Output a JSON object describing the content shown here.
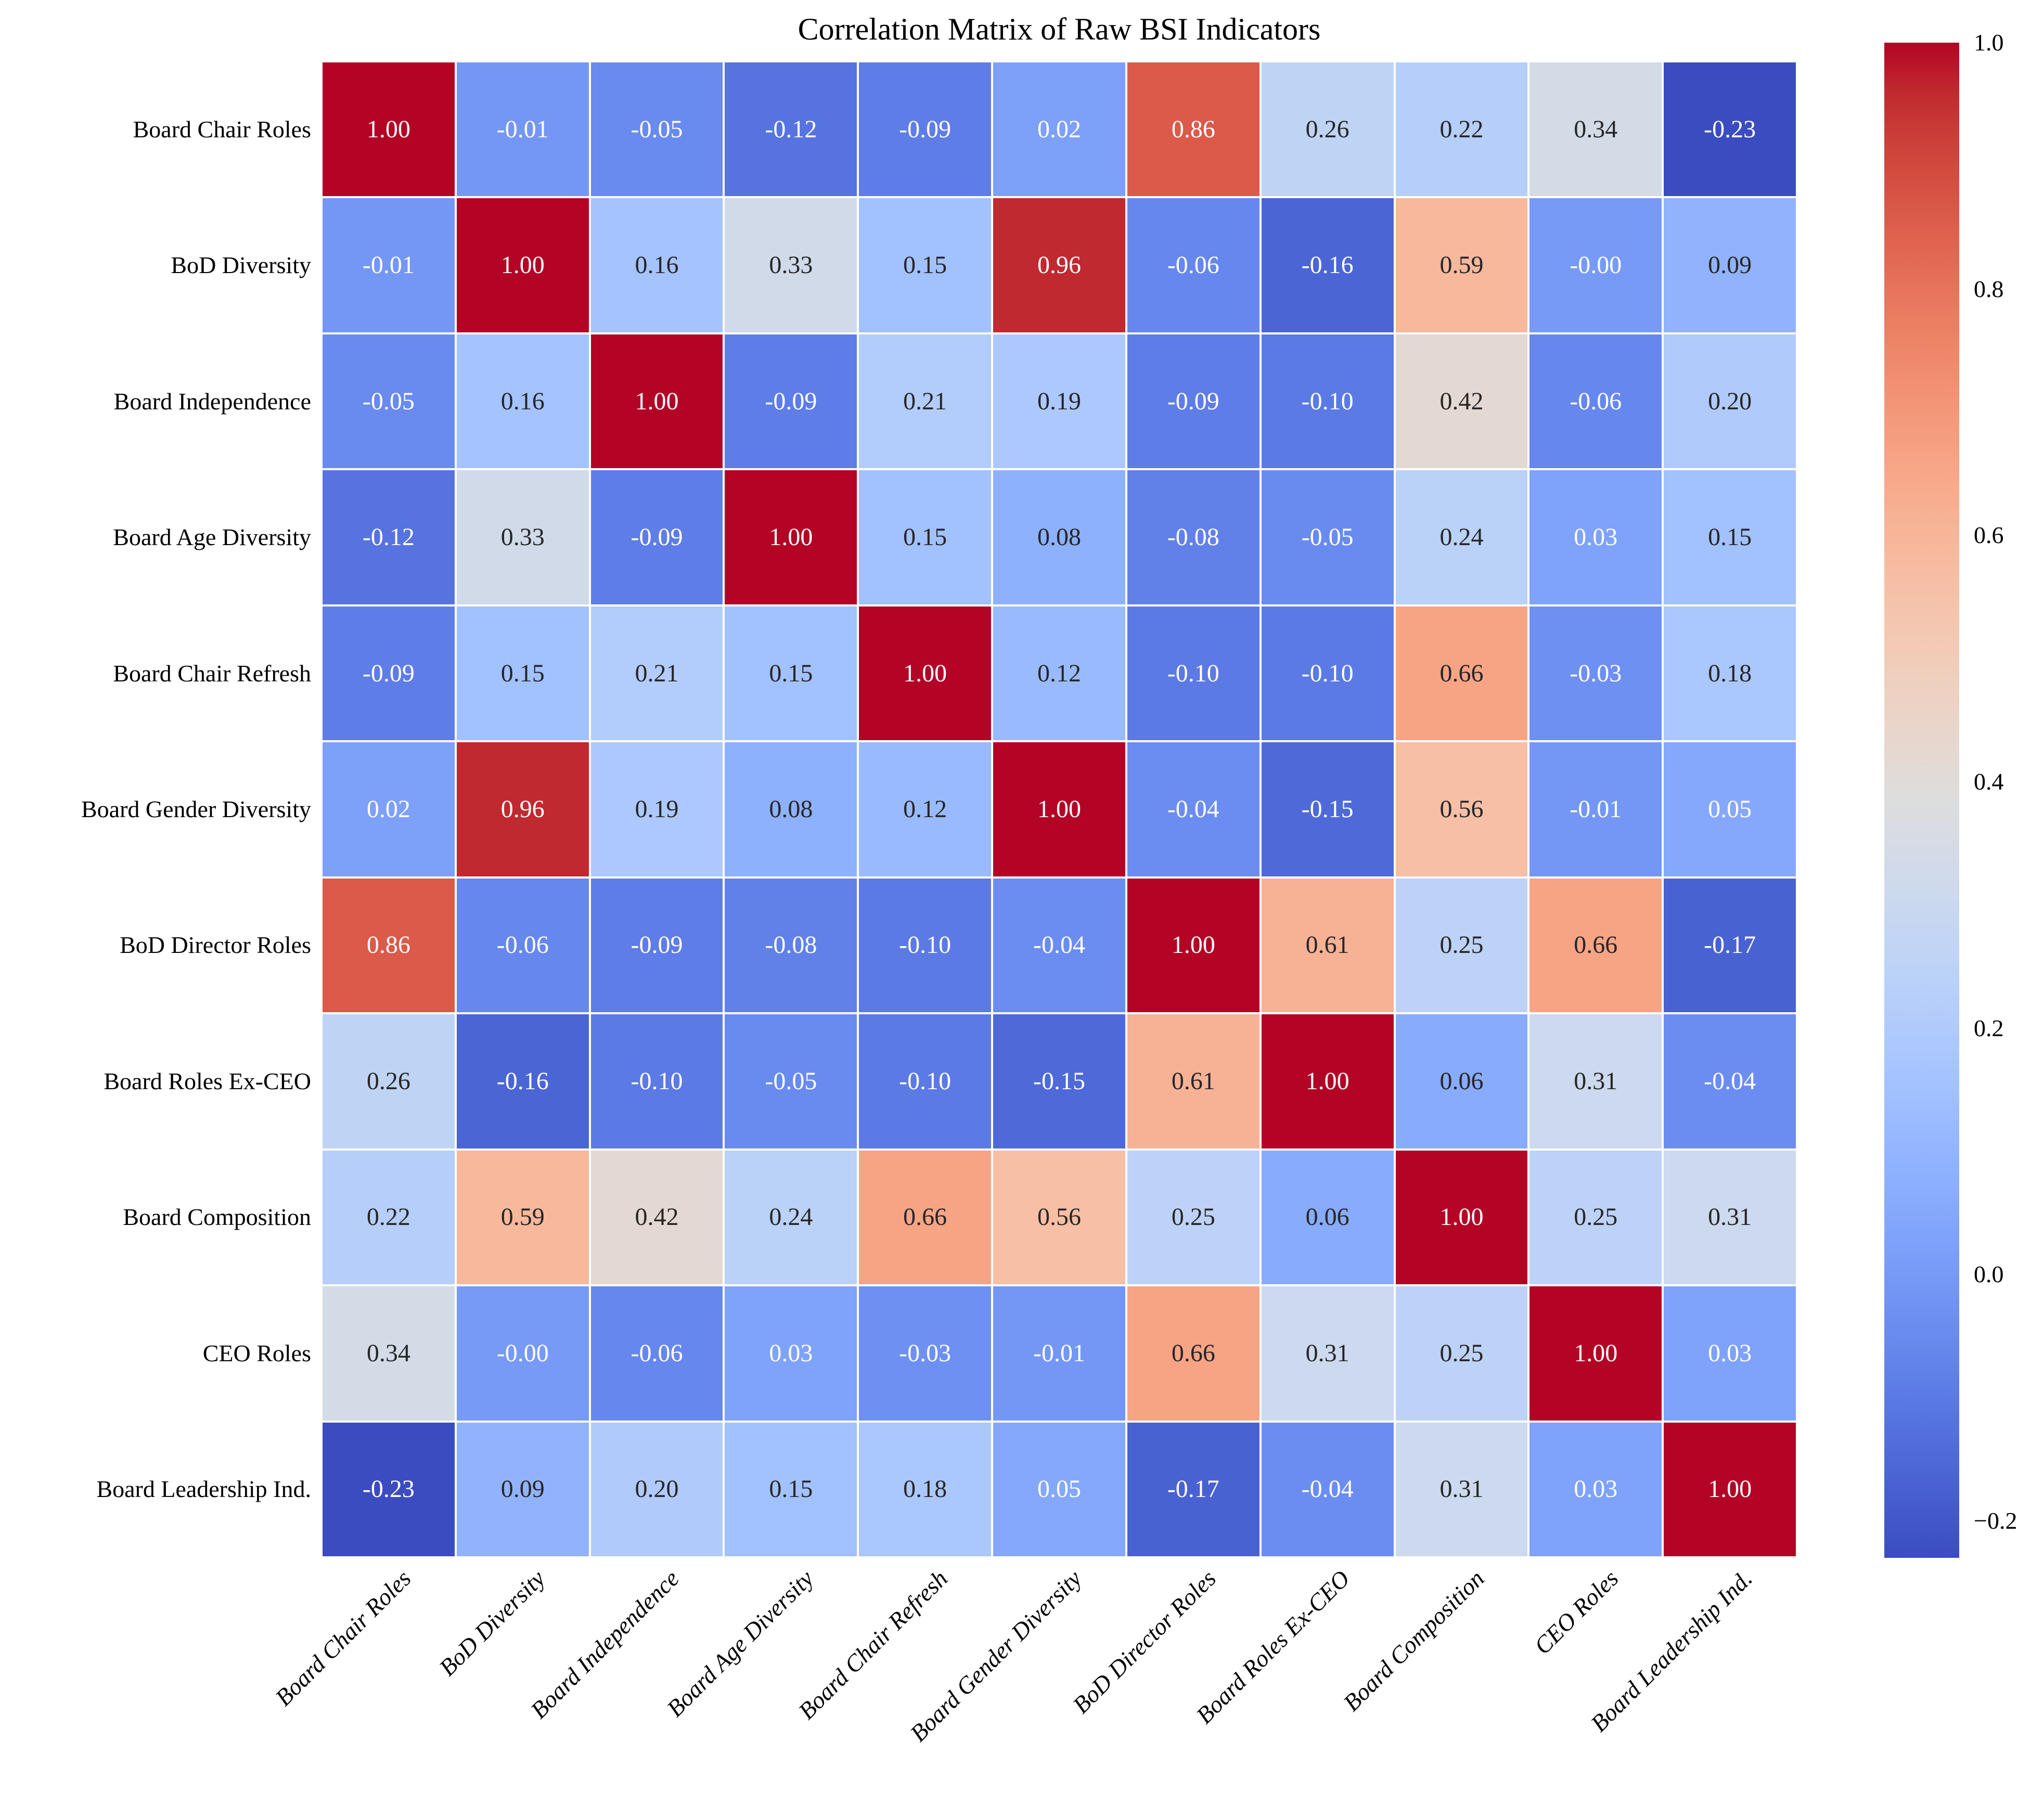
{
  "title": "Correlation Matrix of Raw BSI Indicators",
  "chart_data": {
    "type": "heatmap",
    "title": "Correlation Matrix of Raw BSI Indicators",
    "labels": [
      "Board Chair Roles",
      "BoD Diversity",
      "Board Independence",
      "Board Age Diversity",
      "Board Chair Refresh",
      "Board Gender Diversity",
      "BoD Director Roles",
      "Board Roles Ex-CEO",
      "Board Composition",
      "CEO Roles",
      "Board Leadership Ind."
    ],
    "matrix_display": [
      [
        "1.00",
        "-0.01",
        "-0.05",
        "-0.12",
        "-0.09",
        "0.02",
        "0.86",
        "0.26",
        "0.22",
        "0.34",
        "-0.23"
      ],
      [
        "-0.01",
        "1.00",
        "0.16",
        "0.33",
        "0.15",
        "0.96",
        "-0.06",
        "-0.16",
        "0.59",
        "-0.00",
        "0.09"
      ],
      [
        "-0.05",
        "0.16",
        "1.00",
        "-0.09",
        "0.21",
        "0.19",
        "-0.09",
        "-0.10",
        "0.42",
        "-0.06",
        "0.20"
      ],
      [
        "-0.12",
        "0.33",
        "-0.09",
        "1.00",
        "0.15",
        "0.08",
        "-0.08",
        "-0.05",
        "0.24",
        "0.03",
        "0.15"
      ],
      [
        "-0.09",
        "0.15",
        "0.21",
        "0.15",
        "1.00",
        "0.12",
        "-0.10",
        "-0.10",
        "0.66",
        "-0.03",
        "0.18"
      ],
      [
        "0.02",
        "0.96",
        "0.19",
        "0.08",
        "0.12",
        "1.00",
        "-0.04",
        "-0.15",
        "0.56",
        "-0.01",
        "0.05"
      ],
      [
        "0.86",
        "-0.06",
        "-0.09",
        "-0.08",
        "-0.10",
        "-0.04",
        "1.00",
        "0.61",
        "0.25",
        "0.66",
        "-0.17"
      ],
      [
        "0.26",
        "-0.16",
        "-0.10",
        "-0.05",
        "-0.10",
        "-0.15",
        "0.61",
        "1.00",
        "0.06",
        "0.31",
        "-0.04"
      ],
      [
        "0.22",
        "0.59",
        "0.42",
        "0.24",
        "0.66",
        "0.56",
        "0.25",
        "0.06",
        "1.00",
        "0.25",
        "0.31"
      ],
      [
        "0.34",
        "-0.00",
        "-0.06",
        "0.03",
        "-0.03",
        "-0.01",
        "0.66",
        "0.31",
        "0.25",
        "1.00",
        "0.03"
      ],
      [
        "-0.23",
        "0.09",
        "0.20",
        "0.15",
        "0.18",
        "0.05",
        "-0.17",
        "-0.04",
        "0.31",
        "0.03",
        "1.00"
      ]
    ],
    "vmin": -0.23,
    "vmax": 1.0,
    "colormap": "coolwarm",
    "colormap_rgb": [
      [
        59,
        76,
        192
      ],
      [
        68,
        90,
        204
      ],
      [
        77,
        104,
        215
      ],
      [
        87,
        117,
        225
      ],
      [
        98,
        130,
        234
      ],
      [
        108,
        142,
        241
      ],
      [
        119,
        154,
        247
      ],
      [
        130,
        165,
        251
      ],
      [
        141,
        176,
        254
      ],
      [
        152,
        185,
        255
      ],
      [
        163,
        194,
        255
      ],
      [
        174,
        201,
        253
      ],
      [
        184,
        208,
        249
      ],
      [
        194,
        213,
        244
      ],
      [
        204,
        217,
        238
      ],
      [
        213,
        219,
        230
      ],
      [
        221,
        221,
        221
      ],
      [
        229,
        216,
        209
      ],
      [
        236,
        211,
        197
      ],
      [
        241,
        204,
        185
      ],
      [
        245,
        196,
        173
      ],
      [
        247,
        187,
        160
      ],
      [
        247,
        177,
        148
      ],
      [
        247,
        166,
        135
      ],
      [
        244,
        154,
        123
      ],
      [
        241,
        141,
        111
      ],
      [
        236,
        127,
        99
      ],
      [
        229,
        112,
        88
      ],
      [
        222,
        96,
        77
      ],
      [
        213,
        80,
        66
      ],
      [
        203,
        62,
        56
      ],
      [
        192,
        40,
        47
      ],
      [
        180,
        4,
        38
      ]
    ],
    "annotation_text_colors": {
      "dark_cells": "#ffffff",
      "light_cells": "#262626"
    },
    "colorbar_position": "right",
    "colorbar_ticks": [
      {
        "value": 1.0,
        "label": "1.0"
      },
      {
        "value": 0.8,
        "label": "0.8"
      },
      {
        "value": 0.6,
        "label": "0.6"
      },
      {
        "value": 0.4,
        "label": "0.4"
      },
      {
        "value": 0.2,
        "label": "0.2"
      },
      {
        "value": 0.0,
        "label": "0.0"
      },
      {
        "value": -0.2,
        "label": "−0.2"
      }
    ],
    "grid": "white cell separators",
    "x_tick_style": "italic, rotated 45deg",
    "y_tick_style": "upright, right-aligned"
  }
}
